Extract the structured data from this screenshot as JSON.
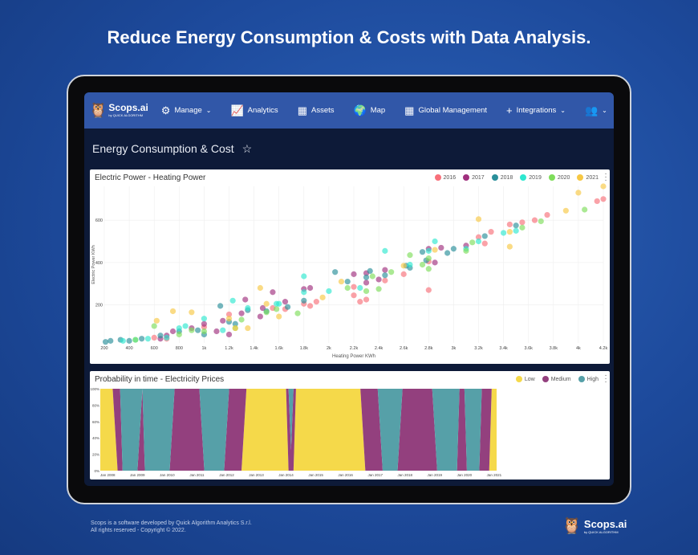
{
  "headline": "Reduce Energy Consumption & Costs with Data Analysis.",
  "nav": {
    "logo": "Scops.ai",
    "logo_sub": "by QUICK ALGORITHM",
    "items": [
      {
        "label": "Manage",
        "icon": "gears-icon",
        "dropdown": true
      },
      {
        "label": "Analytics",
        "icon": "chart-line-icon",
        "dropdown": false
      },
      {
        "label": "Assets",
        "icon": "grid-icon",
        "dropdown": false
      },
      {
        "label": "Map",
        "icon": "globe-icon",
        "dropdown": false
      },
      {
        "label": "Global Management",
        "icon": "grid-icon",
        "dropdown": false
      },
      {
        "label": "Integrations",
        "icon": "plus-icon",
        "dropdown": true
      }
    ],
    "users_icon": "users-icon",
    "settings_icon": "gears-icon"
  },
  "page": {
    "title": "Energy Consumption & Cost",
    "favorite_icon": "star-outline-icon"
  },
  "chart_data": [
    {
      "type": "scatter",
      "title": "Electric Power - Heating Power",
      "xlabel": "Heating Power KWh",
      "ylabel": "Electric Power KWh",
      "xlim": [
        200,
        4200
      ],
      "ylim": [
        20,
        760
      ],
      "xticks": [
        "200",
        "400",
        "600",
        "800",
        "1k",
        "1.2k",
        "1.4k",
        "1.6k",
        "1.8k",
        "2k",
        "2.2k",
        "2.4k",
        "2.6k",
        "2.8k",
        "3k",
        "3.2k",
        "3.4k",
        "3.6k",
        "3.8k",
        "4k",
        "4.2k"
      ],
      "yticks": [
        "200",
        "400",
        "600"
      ],
      "grid": true,
      "legend_position": "top-right",
      "series": [
        {
          "name": "2016",
          "color": "#f8707a",
          "points": [
            [
              600,
              45
            ],
            [
              700,
              40
            ],
            [
              1000,
              95
            ],
            [
              1200,
              155
            ],
            [
              1550,
              185
            ],
            [
              1650,
              180
            ],
            [
              1800,
              205
            ],
            [
              1850,
              195
            ],
            [
              1900,
              215
            ],
            [
              2200,
              245
            ],
            [
              2250,
              215
            ],
            [
              2300,
              225
            ],
            [
              2450,
              315
            ],
            [
              2600,
              345
            ],
            [
              2800,
              270
            ],
            [
              2800,
              405
            ],
            [
              3200,
              520
            ],
            [
              3250,
              490
            ],
            [
              3300,
              545
            ],
            [
              3450,
              580
            ],
            [
              3550,
              590
            ],
            [
              3650,
              600
            ],
            [
              3750,
              625
            ],
            [
              4150,
              690
            ],
            [
              4200,
              700
            ],
            [
              2200,
              285
            ]
          ]
        },
        {
          "name": "2017",
          "color": "#a0307e",
          "points": [
            [
              650,
              40
            ],
            [
              700,
              55
            ],
            [
              750,
              75
            ],
            [
              900,
              90
            ],
            [
              1100,
              75
            ],
            [
              1150,
              125
            ],
            [
              1200,
              60
            ],
            [
              1300,
              160
            ],
            [
              1330,
              225
            ],
            [
              1470,
              185
            ],
            [
              1550,
              260
            ],
            [
              1650,
              215
            ],
            [
              1800,
              275
            ],
            [
              1850,
              280
            ],
            [
              2200,
              345
            ],
            [
              2300,
              350
            ],
            [
              2300,
              305
            ],
            [
              2400,
              320
            ],
            [
              2450,
              365
            ],
            [
              2800,
              465
            ],
            [
              2850,
              400
            ],
            [
              2900,
              470
            ],
            [
              3100,
              480
            ],
            [
              1450,
              145
            ],
            [
              1000,
              110
            ]
          ]
        },
        {
          "name": "2018",
          "color": "#2a8f9a",
          "points": [
            [
              210,
              25
            ],
            [
              250,
              30
            ],
            [
              330,
              35
            ],
            [
              400,
              30
            ],
            [
              500,
              40
            ],
            [
              650,
              55
            ],
            [
              800,
              75
            ],
            [
              950,
              80
            ],
            [
              1000,
              60
            ],
            [
              1130,
              195
            ],
            [
              1200,
              120
            ],
            [
              1250,
              110
            ],
            [
              1350,
              175
            ],
            [
              1500,
              170
            ],
            [
              1670,
              190
            ],
            [
              1800,
              220
            ],
            [
              2050,
              355
            ],
            [
              2150,
              310
            ],
            [
              2300,
              330
            ],
            [
              2330,
              360
            ],
            [
              2450,
              340
            ],
            [
              2620,
              385
            ],
            [
              2650,
              375
            ],
            [
              2780,
              410
            ],
            [
              2950,
              445
            ],
            [
              3000,
              465
            ],
            [
              3250,
              525
            ],
            [
              3500,
              575
            ],
            [
              2750,
              450
            ]
          ]
        },
        {
          "name": "2019",
          "color": "#2ee8d0",
          "points": [
            [
              350,
              30
            ],
            [
              450,
              35
            ],
            [
              550,
              40
            ],
            [
              700,
              45
            ],
            [
              800,
              90
            ],
            [
              850,
              100
            ],
            [
              1000,
              135
            ],
            [
              1150,
              80
            ],
            [
              1230,
              220
            ],
            [
              1350,
              185
            ],
            [
              1580,
              205
            ],
            [
              1800,
              335
            ],
            [
              1800,
              260
            ],
            [
              2000,
              265
            ],
            [
              2250,
              280
            ],
            [
              2450,
              455
            ],
            [
              2650,
              390
            ],
            [
              2800,
              455
            ],
            [
              2850,
              500
            ],
            [
              3100,
              465
            ],
            [
              3200,
              500
            ],
            [
              3400,
              540
            ],
            [
              3500,
              550
            ],
            [
              1600,
              205
            ]
          ]
        },
        {
          "name": "2020",
          "color": "#7edd5a",
          "points": [
            [
              450,
              35
            ],
            [
              600,
              100
            ],
            [
              800,
              60
            ],
            [
              900,
              80
            ],
            [
              1000,
              75
            ],
            [
              1250,
              90
            ],
            [
              1300,
              130
            ],
            [
              1500,
              165
            ],
            [
              1580,
              180
            ],
            [
              1750,
              160
            ],
            [
              2150,
              280
            ],
            [
              2300,
              265
            ],
            [
              2350,
              335
            ],
            [
              2400,
              275
            ],
            [
              2500,
              355
            ],
            [
              2650,
              435
            ],
            [
              2750,
              390
            ],
            [
              2800,
              420
            ],
            [
              2800,
              370
            ],
            [
              3100,
              455
            ],
            [
              3150,
              495
            ],
            [
              3550,
              565
            ],
            [
              3700,
              595
            ],
            [
              4050,
              650
            ]
          ]
        },
        {
          "name": "2021",
          "color": "#f7c843",
          "points": [
            [
              620,
              125
            ],
            [
              750,
              170
            ],
            [
              900,
              165
            ],
            [
              1250,
              90
            ],
            [
              1350,
              90
            ],
            [
              1450,
              280
            ],
            [
              1500,
              205
            ],
            [
              1600,
              145
            ],
            [
              1950,
              235
            ],
            [
              2100,
              310
            ],
            [
              2600,
              385
            ],
            [
              2850,
              460
            ],
            [
              3200,
              605
            ],
            [
              3450,
              545
            ],
            [
              3450,
              475
            ],
            [
              3900,
              645
            ],
            [
              4000,
              730
            ],
            [
              4200,
              760
            ],
            [
              1200,
              135
            ]
          ]
        }
      ]
    },
    {
      "type": "area",
      "stacked": "percent",
      "title": "Probability in time - Electricity Prices",
      "xlim": [
        "2007-10",
        "2021-02"
      ],
      "ylim": [
        0,
        100
      ],
      "xticks": [
        "Jan 2008",
        "Jan 2009",
        "Jan 2010",
        "Jan 2011",
        "Jan 2012",
        "Jan 2013",
        "Jan 2014",
        "Jan 2015",
        "Jan 2016",
        "Jan 2017",
        "Jan 2018",
        "Jan 2019",
        "Jan 2020",
        "Jan 2021"
      ],
      "yticks": [
        "0%",
        "20%",
        "40%",
        "60%",
        "80%",
        "100%"
      ],
      "legend_position": "top-right",
      "series_names": [
        "Low",
        "Medium",
        "High"
      ],
      "colors": [
        "#f5d94a",
        "#93407e",
        "#56a0a8"
      ],
      "points": [
        [
          "2007-10",
          100,
          0,
          0
        ],
        [
          "2008-03",
          100,
          0,
          0
        ],
        [
          "2008-05",
          0,
          100,
          0
        ],
        [
          "2008-06",
          0,
          100,
          0
        ],
        [
          "2008-07",
          0,
          0,
          100
        ],
        [
          "2009-01",
          0,
          0,
          100
        ],
        [
          "2009-03",
          0,
          100,
          0
        ],
        [
          "2009-04",
          0,
          0,
          100
        ],
        [
          "2010-02",
          0,
          0,
          100
        ],
        [
          "2010-04",
          0,
          100,
          0
        ],
        [
          "2011-02",
          0,
          100,
          0
        ],
        [
          "2011-04",
          0,
          0,
          100
        ],
        [
          "2011-12",
          0,
          0,
          100
        ],
        [
          "2012-02",
          0,
          100,
          0
        ],
        [
          "2012-07",
          0,
          100,
          0
        ],
        [
          "2012-09",
          100,
          0,
          0
        ],
        [
          "2014-01",
          100,
          0,
          0
        ],
        [
          "2014-02",
          0,
          100,
          0
        ],
        [
          "2014-03",
          0,
          25,
          75
        ],
        [
          "2014-04",
          0,
          100,
          0
        ],
        [
          "2014-05",
          100,
          0,
          0
        ],
        [
          "2016-07",
          100,
          0,
          0
        ],
        [
          "2016-09",
          0,
          100,
          0
        ],
        [
          "2017-02",
          0,
          100,
          0
        ],
        [
          "2017-04",
          0,
          0,
          100
        ],
        [
          "2017-10",
          0,
          0,
          100
        ],
        [
          "2017-12",
          0,
          100,
          0
        ],
        [
          "2018-12",
          0,
          100,
          0
        ],
        [
          "2019-02",
          0,
          0,
          100
        ],
        [
          "2019-10",
          0,
          0,
          100
        ],
        [
          "2019-11",
          0,
          100,
          0
        ],
        [
          "2020-01",
          0,
          100,
          0
        ],
        [
          "2020-02",
          0,
          0,
          100
        ],
        [
          "2020-07",
          0,
          0,
          100
        ],
        [
          "2020-08",
          0,
          100,
          0
        ],
        [
          "2020-11",
          0,
          100,
          0
        ],
        [
          "2020-12",
          100,
          0,
          0
        ],
        [
          "2021-02",
          100,
          0,
          0
        ]
      ]
    }
  ],
  "footer": {
    "line1": "Scops is a software developed by Quick Algorithm Analytics S.r.l.",
    "line2": "All rights reserved - Copyright © 2022.",
    "logo": "Scops.ai",
    "logo_sub": "by QUICK ALGORITHM"
  }
}
